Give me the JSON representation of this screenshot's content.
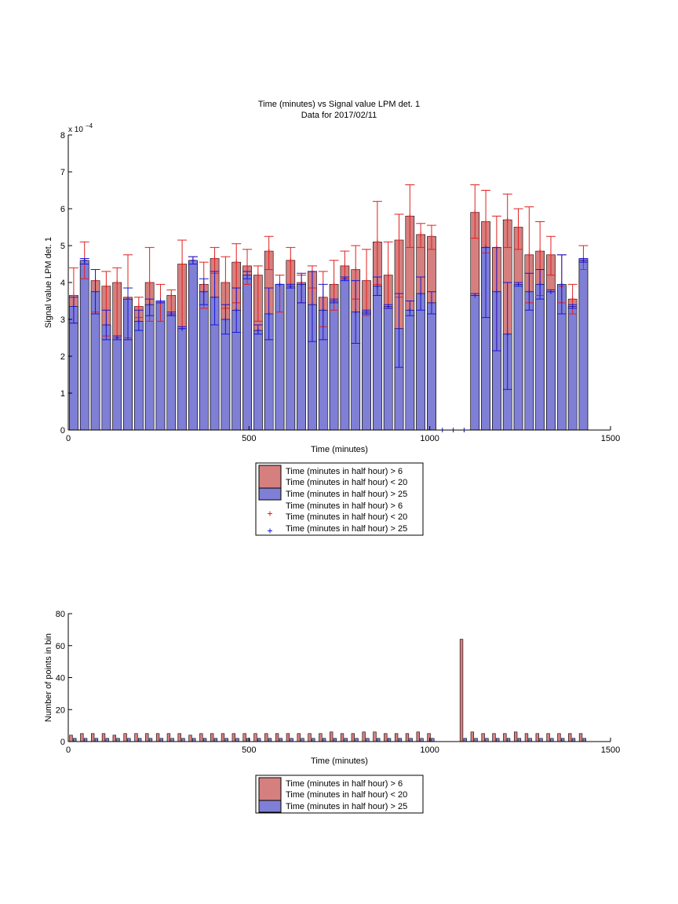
{
  "colors": {
    "red_fill": "#d67f7f",
    "blue_fill": "#7f7fd6",
    "red_marker": "#e02020",
    "blue_marker": "#1818d8",
    "axis": "#000000"
  },
  "chart_data": [
    {
      "type": "bar",
      "title": "Time (minutes) vs Signal value LPM det. 1",
      "subtitle": "Data for 2017/02/11",
      "xlabel": "Time (minutes)",
      "ylabel": "Signal value LPM det. 1",
      "xlim": [
        0,
        1500
      ],
      "ylim": [
        0,
        8
      ],
      "y_exponent_label": "x 10^-4",
      "xticks": [
        0,
        500,
        1000,
        1500
      ],
      "yticks": [
        0,
        1,
        2,
        3,
        4,
        5,
        6,
        7,
        8
      ],
      "grid": false,
      "legend_position": "below",
      "legend": [
        "Time (minutes in half hour) > 6\nTime (minutes in half hour) < 20",
        "Time (minutes in half hour) > 25",
        "Time (minutes in half hour) > 6\nTime (minutes in half hour) < 20",
        "Time (minutes in half hour) > 25"
      ],
      "x": [
        15,
        45,
        75,
        105,
        135,
        165,
        195,
        225,
        255,
        285,
        315,
        345,
        375,
        405,
        435,
        465,
        495,
        525,
        555,
        585,
        615,
        645,
        675,
        705,
        735,
        765,
        795,
        825,
        855,
        885,
        915,
        945,
        975,
        1005,
        1035,
        1065,
        1095,
        1125,
        1155,
        1185,
        1215,
        1245,
        1275,
        1305,
        1335,
        1365,
        1395,
        1425
      ],
      "series": [
        {
          "name": "Time (minutes in half hour) > 6\nTime (minutes in half hour) < 20",
          "values": [
            3.65,
            4.6,
            4.05,
            3.9,
            4.0,
            3.6,
            3.35,
            4.0,
            3.45,
            3.65,
            4.5,
            4.6,
            3.95,
            4.65,
            4.0,
            4.55,
            4.45,
            4.2,
            4.85,
            3.95,
            4.6,
            4.0,
            4.3,
            3.6,
            3.95,
            4.45,
            4.35,
            4.05,
            5.1,
            4.2,
            5.15,
            5.8,
            5.3,
            5.25,
            0,
            0,
            0,
            5.9,
            5.65,
            4.95,
            5.7,
            5.5,
            4.75,
            4.85,
            4.75,
            3.9,
            3.55,
            4.65
          ],
          "error_low": [
            2.9,
            4.1,
            3.2,
            2.55,
            2.5,
            2.5,
            3.05,
            2.95,
            2.95,
            3.1,
            2.8,
            4.5,
            3.3,
            4.25,
            3.3,
            3.45,
            3.95,
            2.95,
            4.35,
            3.2,
            3.95,
            3.45,
            3.85,
            2.8,
            3.25,
            4.1,
            3.55,
            3.1,
            3.95,
            3.3,
            3.6,
            4.95,
            4.95,
            4.9,
            0,
            0,
            0,
            5.2,
            4.8,
            2.15,
            4.95,
            4.9,
            3.45,
            3.65,
            4.2,
            3.45,
            3.15,
            4.35
          ],
          "error_high": [
            4.4,
            5.1,
            4.35,
            4.3,
            4.4,
            4.75,
            3.6,
            4.95,
            3.95,
            3.8,
            5.15,
            4.7,
            4.55,
            4.95,
            4.7,
            5.05,
            4.9,
            4.45,
            5.25,
            4.2,
            4.95,
            4.2,
            4.45,
            4.3,
            4.6,
            4.85,
            5.0,
            4.9,
            6.2,
            5.1,
            5.85,
            6.65,
            5.6,
            5.55,
            0,
            0,
            0,
            6.65,
            6.5,
            5.8,
            6.4,
            6.0,
            6.05,
            5.65,
            5.25,
            4.75,
            3.95,
            5.0
          ]
        },
        {
          "name": "Time (minutes in half hour) > 25",
          "values": [
            3.35,
            4.6,
            3.75,
            2.85,
            2.5,
            3.55,
            2.95,
            3.4,
            3.5,
            3.15,
            2.75,
            4.6,
            3.75,
            3.6,
            3.0,
            3.25,
            4.2,
            2.7,
            3.15,
            3.95,
            3.9,
            3.95,
            3.4,
            3.25,
            3.5,
            4.1,
            3.2,
            3.2,
            3.9,
            3.35,
            2.75,
            3.25,
            3.7,
            3.45,
            0,
            0,
            0,
            3.65,
            4.95,
            3.75,
            2.6,
            3.95,
            3.75,
            3.95,
            3.75,
            3.95,
            3.35,
            4.6
          ],
          "error_low": [
            2.9,
            4.5,
            3.15,
            2.45,
            2.45,
            2.45,
            2.7,
            3.1,
            3.45,
            3.1,
            2.75,
            4.5,
            3.4,
            2.85,
            2.6,
            2.65,
            4.1,
            2.6,
            2.45,
            3.95,
            3.85,
            3.45,
            2.4,
            2.45,
            3.45,
            4.05,
            2.35,
            3.15,
            3.65,
            3.3,
            1.7,
            3.1,
            3.25,
            3.15,
            0,
            0,
            0,
            3.65,
            3.05,
            2.15,
            1.1,
            3.9,
            3.25,
            3.55,
            3.75,
            3.15,
            3.3,
            4.55
          ],
          "error_high": [
            3.6,
            4.65,
            4.35,
            3.25,
            2.55,
            3.85,
            3.25,
            3.55,
            3.5,
            3.2,
            2.8,
            4.7,
            4.1,
            4.3,
            3.4,
            3.85,
            4.3,
            2.85,
            3.85,
            3.95,
            3.95,
            4.25,
            4.3,
            3.95,
            3.55,
            4.15,
            4.05,
            3.25,
            4.15,
            3.4,
            3.7,
            3.5,
            4.15,
            3.75,
            0,
            0,
            0,
            3.7,
            4.95,
            4.95,
            4.0,
            4.0,
            4.25,
            4.35,
            3.8,
            4.75,
            3.4,
            4.65
          ]
        }
      ],
      "empty_bin_markers_x": [
        1035,
        1065,
        1095
      ]
    },
    {
      "type": "bar",
      "xlabel": "Time (minutes)",
      "ylabel": "Number of points in bin",
      "xlim": [
        0,
        1500
      ],
      "ylim": [
        0,
        80
      ],
      "xticks": [
        0,
        500,
        1000,
        1500
      ],
      "yticks": [
        0,
        20,
        40,
        60,
        80
      ],
      "grid": false,
      "legend_position": "below",
      "legend": [
        "Time (minutes in half hour) > 6\nTime (minutes in half hour) < 20",
        "Time (minutes in half hour) > 25"
      ],
      "x": [
        15,
        45,
        75,
        105,
        135,
        165,
        195,
        225,
        255,
        285,
        315,
        345,
        375,
        405,
        435,
        465,
        495,
        525,
        555,
        585,
        615,
        645,
        675,
        705,
        735,
        765,
        795,
        825,
        855,
        885,
        915,
        945,
        975,
        1005,
        1035,
        1065,
        1095,
        1125,
        1155,
        1185,
        1215,
        1245,
        1275,
        1305,
        1335,
        1365,
        1395,
        1425
      ],
      "series": [
        {
          "name": "Time (minutes in half hour) > 6\nTime (minutes in half hour) < 20",
          "values": [
            4,
            5,
            5,
            5,
            4,
            5,
            5,
            5,
            5,
            5,
            5,
            4,
            5,
            5,
            5,
            5,
            5,
            5,
            5,
            5,
            5,
            5,
            5,
            5,
            6,
            5,
            5,
            6,
            6,
            5,
            5,
            5,
            6,
            5,
            0,
            0,
            64,
            6,
            5,
            5,
            5,
            6,
            5,
            5,
            5,
            5,
            5,
            5
          ],
          "values_comment_free": true
        },
        {
          "name": "Time (minutes in half hour) > 25",
          "values": [
            2,
            2,
            2,
            2,
            2,
            2,
            2,
            2,
            2,
            2,
            2,
            2,
            2,
            2,
            2,
            2,
            2,
            2,
            2,
            2,
            2,
            2,
            2,
            2,
            2,
            2,
            2,
            2,
            2,
            2,
            2,
            2,
            2,
            2,
            0,
            0,
            2,
            2,
            2,
            2,
            2,
            2,
            2,
            2,
            2,
            2,
            2,
            2
          ]
        }
      ]
    }
  ]
}
